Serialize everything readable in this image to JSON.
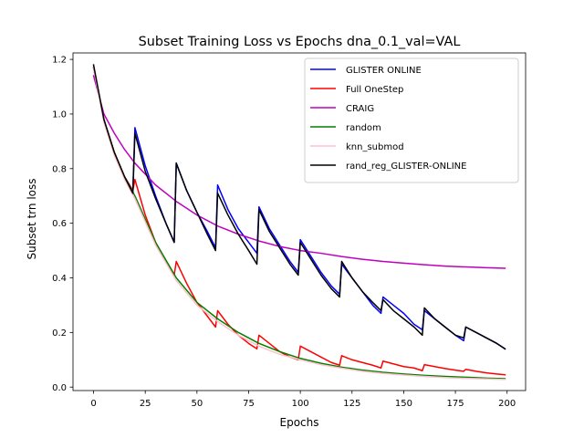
{
  "chart_data": {
    "type": "line",
    "title": "Subset Training Loss vs Epochs dna_0.1_val=VAL",
    "xlabel": "Epochs",
    "ylabel": "Subset trn loss",
    "xlim": [
      -9.95,
      208.95
    ],
    "ylim": [
      -0.0127,
      1.2237
    ],
    "x_ticks": [
      0,
      25,
      50,
      75,
      100,
      125,
      150,
      175,
      200
    ],
    "x_tick_labels": [
      "0",
      "25",
      "50",
      "75",
      "100",
      "125",
      "150",
      "175",
      "200"
    ],
    "y_ticks": [
      0.0,
      0.2,
      0.4,
      0.6,
      0.8,
      1.0,
      1.2
    ],
    "y_tick_labels": [
      "0.0",
      "0.2",
      "0.4",
      "0.6",
      "0.8",
      "1.0",
      "1.2"
    ],
    "grid": false,
    "legend_position": "top-right",
    "series": [
      {
        "name": "GLISTER ONLINE",
        "color": "#0000ff",
        "x": [
          0,
          5,
          10,
          15,
          19,
          20,
          25,
          30,
          35,
          39,
          40,
          45,
          50,
          55,
          59,
          60,
          65,
          70,
          75,
          79,
          80,
          85,
          90,
          95,
          99,
          100,
          105,
          110,
          115,
          119,
          120,
          125,
          130,
          135,
          139,
          140,
          145,
          150,
          155,
          159,
          160,
          165,
          170,
          175,
          179,
          180,
          185,
          190,
          195,
          199
        ],
        "y": [
          1.17,
          0.98,
          0.86,
          0.77,
          0.72,
          0.95,
          0.81,
          0.7,
          0.6,
          0.53,
          0.82,
          0.72,
          0.64,
          0.57,
          0.51,
          0.74,
          0.65,
          0.58,
          0.53,
          0.49,
          0.66,
          0.58,
          0.52,
          0.46,
          0.42,
          0.54,
          0.48,
          0.42,
          0.37,
          0.34,
          0.45,
          0.4,
          0.35,
          0.3,
          0.27,
          0.33,
          0.3,
          0.27,
          0.23,
          0.21,
          0.28,
          0.25,
          0.22,
          0.19,
          0.17,
          0.22,
          0.2,
          0.18,
          0.16,
          0.14
        ]
      },
      {
        "name": "Full OneStep",
        "color": "#ff0000",
        "x": [
          0,
          5,
          10,
          15,
          19,
          20,
          25,
          30,
          35,
          39,
          40,
          45,
          50,
          55,
          59,
          60,
          65,
          70,
          75,
          79,
          80,
          85,
          90,
          95,
          99,
          100,
          105,
          110,
          115,
          119,
          120,
          125,
          130,
          135,
          139,
          140,
          145,
          150,
          155,
          159,
          160,
          165,
          170,
          175,
          179,
          180,
          185,
          190,
          195,
          199
        ],
        "y": [
          1.17,
          0.98,
          0.86,
          0.77,
          0.72,
          0.76,
          0.63,
          0.53,
          0.46,
          0.41,
          0.46,
          0.38,
          0.31,
          0.26,
          0.22,
          0.28,
          0.23,
          0.19,
          0.16,
          0.14,
          0.19,
          0.16,
          0.13,
          0.11,
          0.1,
          0.15,
          0.13,
          0.11,
          0.09,
          0.08,
          0.115,
          0.1,
          0.09,
          0.08,
          0.07,
          0.095,
          0.085,
          0.075,
          0.07,
          0.06,
          0.082,
          0.075,
          0.068,
          0.062,
          0.058,
          0.065,
          0.058,
          0.052,
          0.048,
          0.045
        ]
      },
      {
        "name": "CRAIG",
        "color": "#bf00bf",
        "x": [
          0,
          5,
          10,
          15,
          20,
          30,
          40,
          50,
          60,
          70,
          80,
          90,
          100,
          110,
          120,
          130,
          140,
          150,
          160,
          170,
          180,
          190,
          199
        ],
        "y": [
          1.14,
          1.0,
          0.93,
          0.87,
          0.82,
          0.74,
          0.68,
          0.63,
          0.59,
          0.56,
          0.535,
          0.515,
          0.5,
          0.49,
          0.478,
          0.468,
          0.46,
          0.454,
          0.448,
          0.443,
          0.44,
          0.437,
          0.435
        ]
      },
      {
        "name": "random",
        "color": "#008000",
        "x": [
          0,
          5,
          10,
          15,
          20,
          30,
          40,
          50,
          60,
          70,
          80,
          90,
          100,
          110,
          120,
          130,
          140,
          150,
          160,
          170,
          180,
          190,
          199
        ],
        "y": [
          1.17,
          0.98,
          0.86,
          0.77,
          0.7,
          0.53,
          0.4,
          0.31,
          0.25,
          0.2,
          0.16,
          0.13,
          0.105,
          0.087,
          0.073,
          0.062,
          0.054,
          0.048,
          0.043,
          0.039,
          0.036,
          0.033,
          0.031
        ]
      },
      {
        "name": "knn_submod",
        "color": "#ffc0cb",
        "x": [
          0,
          5,
          10,
          15,
          20,
          30,
          40,
          50,
          60,
          70,
          80,
          90,
          100,
          110,
          120,
          130,
          140,
          150,
          160,
          170,
          180,
          190,
          199
        ],
        "y": [
          1.17,
          0.97,
          0.85,
          0.76,
          0.69,
          0.52,
          0.39,
          0.3,
          0.24,
          0.19,
          0.15,
          0.12,
          0.1,
          0.082,
          0.069,
          0.058,
          0.05,
          0.044,
          0.039,
          0.035,
          0.032,
          0.03,
          0.028
        ]
      },
      {
        "name": "rand_reg_GLISTER-ONLINE",
        "color": "#000000",
        "x": [
          0,
          5,
          10,
          15,
          19,
          20,
          25,
          30,
          35,
          39,
          40,
          45,
          50,
          55,
          59,
          60,
          65,
          70,
          75,
          79,
          80,
          85,
          90,
          95,
          99,
          100,
          105,
          110,
          115,
          119,
          120,
          125,
          130,
          135,
          139,
          140,
          145,
          150,
          155,
          159,
          160,
          165,
          170,
          175,
          179,
          180,
          185,
          190,
          195,
          199
        ],
        "y": [
          1.18,
          0.98,
          0.86,
          0.77,
          0.71,
          0.93,
          0.79,
          0.69,
          0.6,
          0.53,
          0.82,
          0.72,
          0.64,
          0.56,
          0.5,
          0.71,
          0.63,
          0.56,
          0.5,
          0.45,
          0.65,
          0.57,
          0.51,
          0.45,
          0.41,
          0.53,
          0.47,
          0.41,
          0.36,
          0.33,
          0.46,
          0.4,
          0.35,
          0.31,
          0.28,
          0.32,
          0.28,
          0.25,
          0.22,
          0.19,
          0.29,
          0.25,
          0.22,
          0.19,
          0.18,
          0.22,
          0.2,
          0.18,
          0.16,
          0.14
        ]
      }
    ]
  }
}
